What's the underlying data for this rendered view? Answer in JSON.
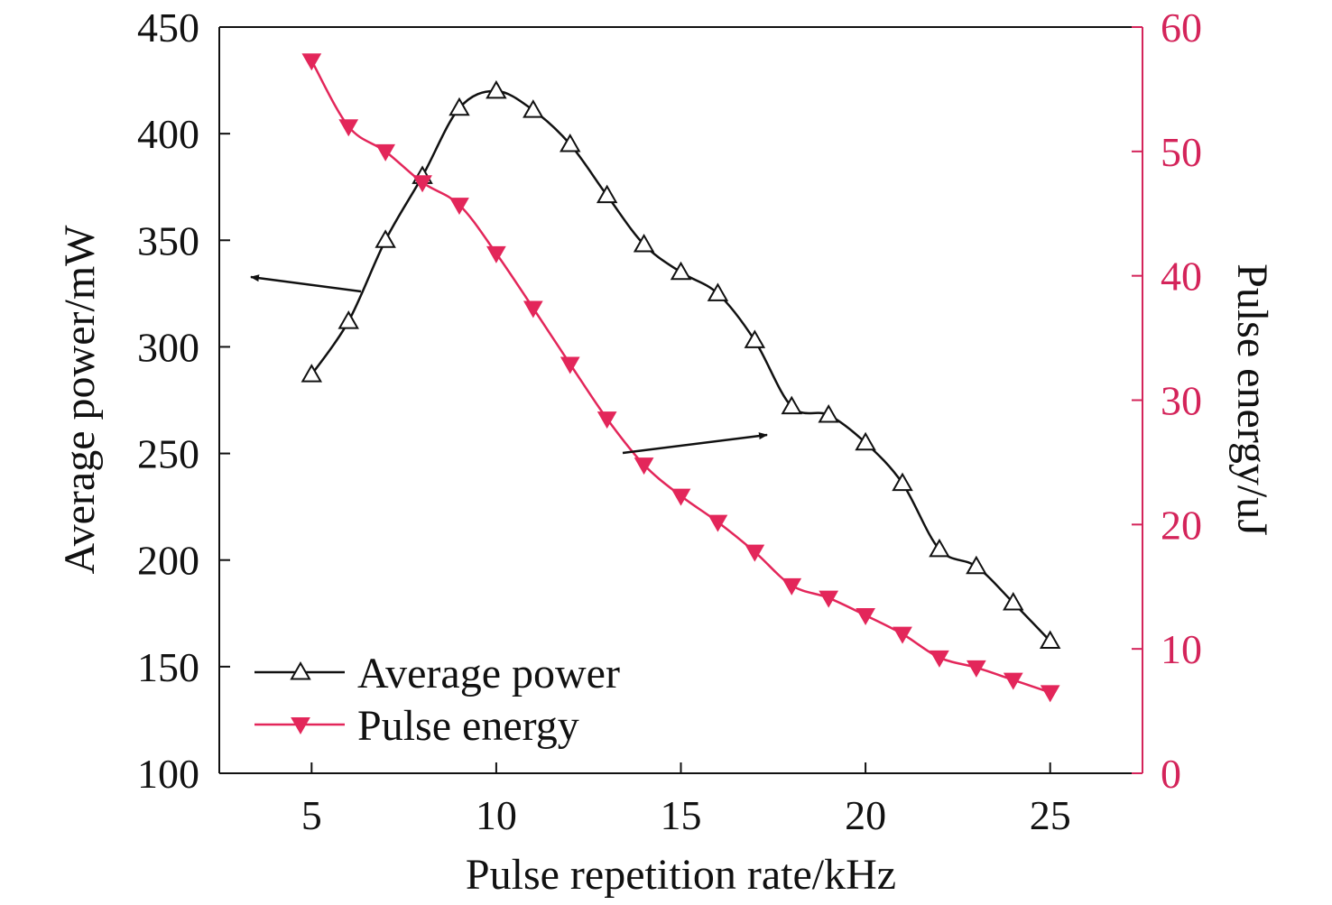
{
  "chart_data": {
    "type": "line",
    "xlabel": "Pulse repetition rate/kHz",
    "ylabel_left": "Average power/mW",
    "ylabel_right": "Pulse energy/uJ",
    "xlim": [
      2.5,
      27.5
    ],
    "xticks": [
      5,
      10,
      15,
      20,
      25
    ],
    "ylim_left": [
      100,
      450
    ],
    "yticks_left": [
      100,
      150,
      200,
      250,
      300,
      350,
      400,
      450
    ],
    "ylim_right": [
      0,
      60
    ],
    "yticks_right": [
      0,
      10,
      20,
      30,
      40,
      50,
      60
    ],
    "x": [
      5,
      6,
      7,
      8,
      9,
      10,
      11,
      12,
      13,
      14,
      15,
      16,
      17,
      18,
      19,
      20,
      21,
      22,
      23,
      24,
      25
    ],
    "series": [
      {
        "name": "Average power",
        "axis": "left",
        "marker": "open-triangle-up",
        "color": "#111111",
        "values": [
          287,
          312,
          350,
          380,
          412,
          420,
          411,
          395,
          371,
          348,
          335,
          325,
          303,
          272,
          268,
          255,
          236,
          205,
          197,
          180,
          162
        ]
      },
      {
        "name": "Pulse energy",
        "axis": "right",
        "marker": "filled-triangle-down",
        "color": "#e3265a",
        "values": [
          57.3,
          52.0,
          50.0,
          47.5,
          45.7,
          41.8,
          37.4,
          32.9,
          28.5,
          24.8,
          22.3,
          20.2,
          17.8,
          15.1,
          14.1,
          12.7,
          11.2,
          9.3,
          8.5,
          7.5,
          6.5
        ]
      }
    ],
    "legend": {
      "position": "bottom-left"
    },
    "annotations": [
      {
        "type": "arrow",
        "from_series": "Average power",
        "direction": "left",
        "meaning": "points to left axis"
      },
      {
        "type": "arrow",
        "from_series": "Pulse energy",
        "direction": "right",
        "meaning": "points to right axis"
      }
    ],
    "colors": {
      "axis_right": "#d4245a",
      "tick_right": "#d4245a",
      "frame": "#111111"
    }
  }
}
